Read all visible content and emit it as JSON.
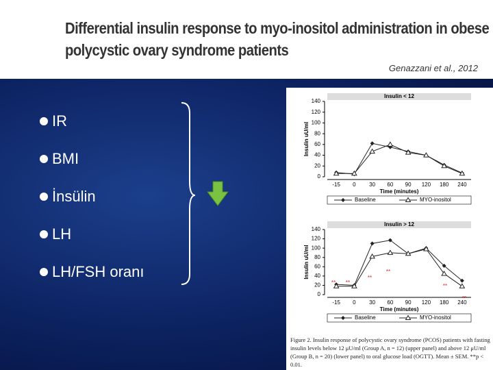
{
  "header": {
    "title_line1": "Differential insulin response to myo-inositol administration in obese",
    "title_line2": "polycystic ovary syndrome patients",
    "citation": "Genazzani et al., 2012"
  },
  "bullets": [
    "IR",
    "BMI",
    "İnsülin",
    "LH",
    "LH/FSH oranı"
  ],
  "caption": "Figure 2. Insulin response of polycystic ovary syndrome (PCOS) patients with fasting insulin levels below 12 μU/ml (Group A, n = 12) (upper panel) and above 12 μU/ml (Group B, n = 20) (lower panel) to oral glucose load (OGTT). Mean ± SEM. **p < 0.01.",
  "chart_data": [
    {
      "type": "line",
      "title": "Insulin < 12",
      "x_label": "Time (minutes)",
      "y_label": "Insulin uU/ml",
      "categories": [
        "-15",
        "0",
        "30",
        "60",
        "90",
        "120",
        "180",
        "240"
      ],
      "series": [
        {
          "name": "Baseline",
          "color": "#222222",
          "marker": "diamond",
          "values": [
            8,
            5,
            62,
            55,
            47,
            40,
            22,
            7
          ]
        },
        {
          "name": "MYO-inositol",
          "color": "#222222",
          "marker": "triangle",
          "values": [
            6,
            6,
            47,
            60,
            45,
            40,
            20,
            6
          ]
        }
      ],
      "ylim": [
        0,
        140
      ],
      "yticks": [
        0,
        20,
        40,
        60,
        80,
        100,
        120,
        140
      ]
    },
    {
      "type": "line",
      "title": "Insulin > 12",
      "x_label": "Time (minutes)",
      "y_label": "Insulin uU/ml",
      "categories": [
        "-15",
        "0",
        "30",
        "60",
        "90",
        "120",
        "180",
        "240"
      ],
      "series": [
        {
          "name": "Baseline",
          "color": "#222222",
          "marker": "diamond",
          "values": [
            22,
            20,
            110,
            117,
            88,
            100,
            62,
            30
          ]
        },
        {
          "name": "MYO-inositol",
          "color": "#222222",
          "marker": "triangle",
          "values": [
            18,
            18,
            82,
            90,
            88,
            98,
            45,
            18
          ]
        }
      ],
      "ylim": [
        0,
        140
      ],
      "yticks": [
        0,
        20,
        40,
        60,
        80,
        100,
        120,
        140
      ],
      "annotations": [
        "**",
        "**",
        "**",
        "**",
        "**",
        "**"
      ],
      "annotation_color": "#dd2222"
    }
  ]
}
